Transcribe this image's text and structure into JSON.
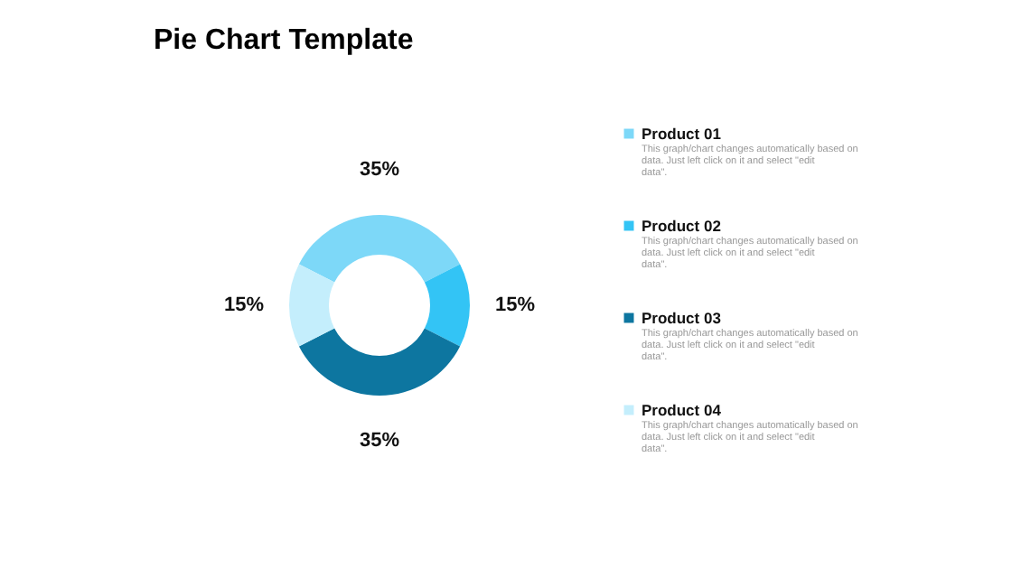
{
  "chart_data": {
    "type": "donut",
    "title": "Pie Chart Template",
    "categories": [
      "Product 01",
      "Product 02",
      "Product 03",
      "Product 04"
    ],
    "values": [
      35,
      15,
      35,
      15
    ],
    "colors": [
      "#7dd8f8",
      "#33c4f5",
      "#0d76a0",
      "#c4eefc"
    ],
    "value_labels": [
      "35%",
      "15%",
      "35%",
      "15%"
    ],
    "annotations": [
      "This graph/chart changes automatically based on data. Just left click on it and select \"edit data\".",
      "This graph/chart changes automatically based on data. Just left click on it and select \"edit data\".",
      "This graph/chart changes automatically based on data. Just left click on it and select \"edit data\".",
      "This graph/chart changes automatically based on data. Just left click on it and select \"edit data\"."
    ],
    "legend": "right"
  }
}
